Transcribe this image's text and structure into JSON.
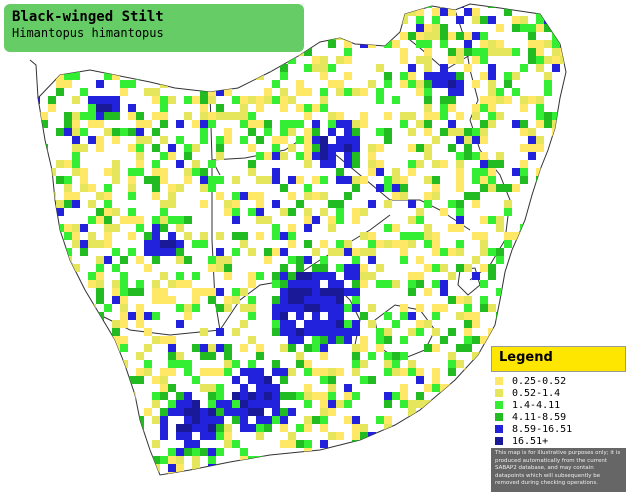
{
  "map": {
    "title": "Black-winged Stilt",
    "subtitle": "Himantopus himantopus",
    "background": "#ffffff",
    "border_color": "#333333",
    "title_bg": "#66cc66"
  },
  "legend": {
    "title": "Legend",
    "header_bg": "#ffe600",
    "entries": [
      {
        "label": "0.25-0.52",
        "color": "#ffe866"
      },
      {
        "label": "0.52-1.4",
        "color": "#e6e65c"
      },
      {
        "label": "1.4-4.11",
        "color": "#33ee33"
      },
      {
        "label": "4.11-8.59",
        "color": "#22bb22"
      },
      {
        "label": "8.59-16.51",
        "color": "#2222dd"
      },
      {
        "label": "16.51+",
        "color": "#1a1a99"
      }
    ],
    "note": "This map is for illustrative purposes only; it is produced automatically from the current SABAP2 database, and may contain datapoints which will subsequently be removed during checking operations."
  }
}
